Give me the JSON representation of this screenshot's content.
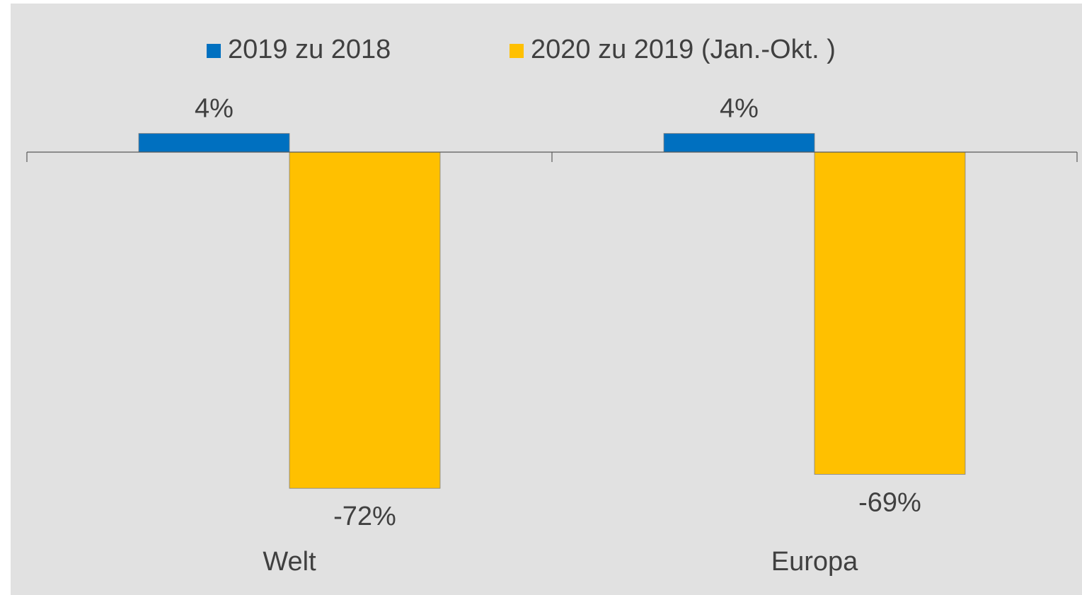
{
  "chart_data": {
    "type": "bar",
    "categories": [
      "Welt",
      "Europa"
    ],
    "series": [
      {
        "name": "2019 zu 2018",
        "color": "#0070c0",
        "values": [
          4,
          4
        ],
        "value_labels": [
          "4%",
          "4%"
        ]
      },
      {
        "name": "2020 zu 2019 (Jan.-Okt. )",
        "color": "#ffc000",
        "values": [
          -72,
          -69
        ],
        "value_labels": [
          "-72%",
          "-69%"
        ]
      }
    ],
    "ylim": [
      -80,
      10
    ],
    "legend": "top"
  }
}
